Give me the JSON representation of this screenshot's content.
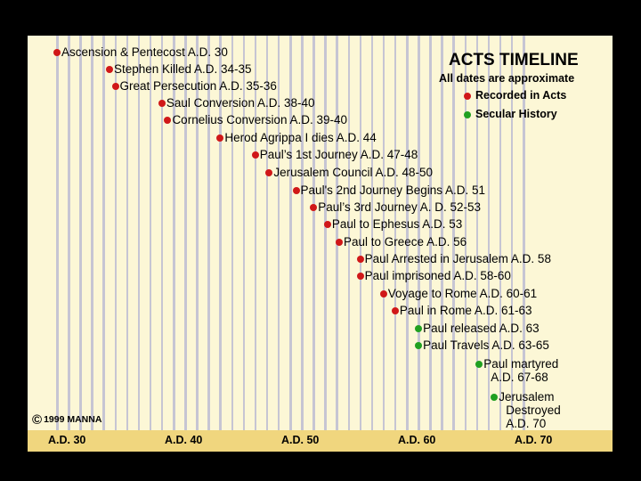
{
  "header": {
    "title": "ACTS TIMELINE",
    "subtitle": "All dates are approximate",
    "legend": [
      {
        "label": "Recorded in Acts",
        "color": "#d01818"
      },
      {
        "label": "Secular History",
        "color": "#20a020"
      }
    ]
  },
  "copyright": {
    "symbol": "©",
    "text": "1999 MANNA"
  },
  "axis": {
    "start_year": 30,
    "end_year": 70,
    "labels": [
      "A.D. 30",
      "A.D. 40",
      "A.D. 50",
      "A.D. 60",
      "A.D. 70"
    ]
  },
  "events": [
    {
      "text": "Ascension & Pentecost A.D. 30",
      "year": 30,
      "kind": "acts"
    },
    {
      "text": "Stephen Killed A.D. 34-35",
      "year": 34.5,
      "kind": "acts"
    },
    {
      "text": "Great Persecution A.D. 35-36",
      "year": 35,
      "kind": "acts"
    },
    {
      "text": "Saul Conversion A.D. 38-40",
      "year": 39,
      "kind": "acts"
    },
    {
      "text": "Cornelius Conversion A.D. 39-40",
      "year": 39.5,
      "kind": "acts"
    },
    {
      "text": "Herod Agrippa I dies A.D. 44",
      "year": 44,
      "kind": "acts"
    },
    {
      "text": "Paul’s 1st Journey A.D. 47-48",
      "year": 47,
      "kind": "acts"
    },
    {
      "text": "Jerusalem Council A.D. 48-50",
      "year": 48.2,
      "kind": "acts"
    },
    {
      "text": "Paul's 2nd Journey Begins A.D. 51",
      "year": 50.5,
      "kind": "acts"
    },
    {
      "text": "Paul’s 3rd Journey A. D. 52-53",
      "year": 52,
      "kind": "acts"
    },
    {
      "text": "Paul to Ephesus A.D. 53",
      "year": 53.2,
      "kind": "acts"
    },
    {
      "text": "Paul to Greece A.D. 56",
      "year": 54.2,
      "kind": "acts"
    },
    {
      "text": "Paul Arrested in Jerusalem A.D. 58",
      "year": 56,
      "kind": "acts"
    },
    {
      "text": "Paul imprisoned A.D. 58-60",
      "year": 56,
      "kind": "acts"
    },
    {
      "text": "Voyage to Rome A.D. 60-61",
      "year": 58,
      "kind": "acts"
    },
    {
      "text": "Paul in Rome A.D. 61-63",
      "year": 59,
      "kind": "acts"
    },
    {
      "text": "Paul released A.D. 63",
      "year": 61,
      "kind": "secular"
    },
    {
      "text": "Paul Travels A.D. 63-65",
      "year": 61,
      "kind": "secular"
    },
    {
      "text": "Paul martyred\nA.D. 67-68",
      "year": 66.2,
      "kind": "secular"
    },
    {
      "text": "Jerusalem\nDestroyed\nA.D. 70",
      "year": 67.5,
      "kind": "secular"
    }
  ]
}
